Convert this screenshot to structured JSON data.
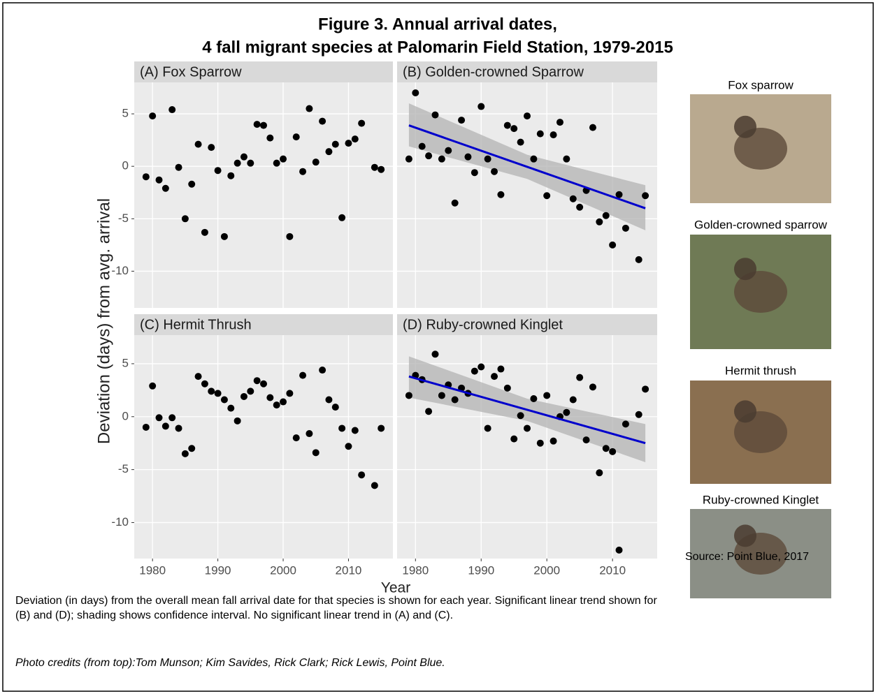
{
  "title": [
    "Figure 3. Annual arrival dates,",
    "4 fall migrant species at Palomarin Field Station, 1979-2015"
  ],
  "ylabel": "Deviation (days) from avg. arrival",
  "xlabel": "Year",
  "chart_data": [
    {
      "type": "scatter",
      "title": "(A) Fox Sparrow",
      "color": "#000000",
      "grid": true,
      "xlim": [
        1977.2,
        2016.8
      ],
      "ylim": [
        -13.5,
        8
      ],
      "xticks": [
        1980,
        1990,
        2000,
        2010
      ],
      "yticks": [
        -10,
        -5,
        0,
        5
      ],
      "x": [
        1979,
        1980,
        1981,
        1982,
        1983,
        1984,
        1985,
        1986,
        1987,
        1988,
        1989,
        1990,
        1991,
        1992,
        1993,
        1994,
        1995,
        1996,
        1997,
        1998,
        1999,
        2000,
        2001,
        2002,
        2003,
        2004,
        2005,
        2006,
        2007,
        2008,
        2009,
        2010,
        2011,
        2012,
        2014,
        2015
      ],
      "values": [
        -1.0,
        4.8,
        -1.3,
        -2.1,
        5.4,
        -0.1,
        -5.0,
        -1.7,
        2.1,
        -6.3,
        1.8,
        -0.4,
        -6.7,
        -0.9,
        0.3,
        0.9,
        0.3,
        4.0,
        3.9,
        2.7,
        0.3,
        0.7,
        -6.7,
        2.8,
        -0.5,
        5.5,
        0.4,
        4.3,
        1.4,
        2.1,
        -4.9,
        2.2,
        2.6,
        4.1,
        -0.1,
        -0.3
      ]
    },
    {
      "type": "scatter",
      "title": "(B) Golden-crowned Sparrow",
      "color": "#000000",
      "grid": true,
      "xlim": [
        1977.2,
        2016.8
      ],
      "ylim": [
        -13.5,
        8
      ],
      "xticks": [
        1980,
        1990,
        2000,
        2010
      ],
      "yticks": [
        -10,
        -5,
        0,
        5
      ],
      "x": [
        1979,
        1980,
        1981,
        1982,
        1983,
        1984,
        1985,
        1986,
        1987,
        1988,
        1989,
        1990,
        1991,
        1992,
        1993,
        1994,
        1995,
        1996,
        1997,
        1998,
        1999,
        2000,
        2001,
        2002,
        2003,
        2004,
        2005,
        2006,
        2007,
        2008,
        2009,
        2010,
        2011,
        2012,
        2014,
        2015
      ],
      "values": [
        0.7,
        7.0,
        1.9,
        1.0,
        4.9,
        0.7,
        1.5,
        -3.5,
        4.4,
        0.9,
        -0.6,
        5.7,
        0.7,
        -0.5,
        -2.7,
        3.9,
        3.6,
        2.3,
        4.8,
        0.7,
        3.1,
        -2.8,
        3.0,
        4.2,
        0.7,
        -3.1,
        -3.9,
        -2.3,
        3.7,
        -5.3,
        -4.7,
        -7.5,
        -2.7,
        -5.9,
        -8.9,
        -2.8
      ],
      "trend": {
        "color": "#0000cc",
        "band_color": "#b3b3b3",
        "x": [
          1979,
          1997,
          2015
        ],
        "values": [
          3.9,
          -0.05,
          -4.0
        ],
        "lower": [
          1.9,
          -1.2,
          -6.1
        ],
        "upper": [
          6.0,
          1.1,
          -1.8
        ]
      }
    },
    {
      "type": "scatter",
      "title": "(C) Hermit Thrush",
      "color": "#000000",
      "grid": true,
      "xlim": [
        1977.2,
        2016.8
      ],
      "ylim": [
        -13.4,
        7.7
      ],
      "xticks": [
        1980,
        1990,
        2000,
        2010
      ],
      "yticks": [
        -10,
        -5,
        0,
        5
      ],
      "x": [
        1979,
        1980,
        1981,
        1982,
        1983,
        1984,
        1985,
        1986,
        1987,
        1988,
        1989,
        1990,
        1991,
        1992,
        1993,
        1994,
        1995,
        1996,
        1997,
        1998,
        1999,
        2000,
        2001,
        2002,
        2003,
        2004,
        2005,
        2006,
        2007,
        2008,
        2009,
        2010,
        2011,
        2012,
        2014,
        2015
      ],
      "values": [
        -1.0,
        2.9,
        -0.1,
        -0.9,
        -0.1,
        -1.1,
        -3.5,
        -3.0,
        3.8,
        3.1,
        2.4,
        2.2,
        1.6,
        0.8,
        -0.4,
        1.9,
        2.4,
        3.4,
        3.1,
        1.8,
        1.1,
        1.4,
        2.2,
        -2.0,
        3.9,
        -1.6,
        -3.4,
        4.4,
        1.6,
        0.9,
        -1.1,
        -2.8,
        -1.3,
        -5.5,
        -6.5,
        -1.1
      ]
    },
    {
      "type": "scatter",
      "title": "(D) Ruby-crowned Kinglet",
      "color": "#000000",
      "grid": true,
      "xlim": [
        1977.2,
        2016.8
      ],
      "ylim": [
        -13.4,
        7.7
      ],
      "xticks": [
        1980,
        1990,
        2000,
        2010
      ],
      "yticks": [
        -10,
        -5,
        0,
        5
      ],
      "x": [
        1979,
        1980,
        1981,
        1982,
        1983,
        1984,
        1985,
        1986,
        1987,
        1988,
        1989,
        1990,
        1991,
        1992,
        1993,
        1994,
        1995,
        1996,
        1997,
        1998,
        1999,
        2000,
        2001,
        2002,
        2003,
        2004,
        2005,
        2006,
        2007,
        2008,
        2009,
        2010,
        2011,
        2012,
        2014,
        2015
      ],
      "values": [
        2.0,
        3.9,
        3.5,
        0.5,
        5.9,
        2.0,
        3.0,
        1.6,
        2.7,
        2.2,
        4.3,
        4.7,
        -1.1,
        3.8,
        4.5,
        2.7,
        -2.1,
        0.1,
        -1.1,
        1.7,
        -2.5,
        2.0,
        -2.3,
        0.0,
        0.4,
        1.6,
        3.7,
        -2.2,
        2.8,
        -5.3,
        -3.0,
        -3.3,
        -12.6,
        -0.7,
        0.2,
        2.6
      ],
      "trend": {
        "color": "#0000cc",
        "band_color": "#b3b3b3",
        "x": [
          1979,
          1997,
          2015
        ],
        "values": [
          3.8,
          0.65,
          -2.5
        ],
        "lower": [
          1.8,
          -0.4,
          -4.3
        ],
        "upper": [
          5.7,
          1.7,
          -0.7
        ]
      }
    }
  ],
  "photos": [
    "Fox sparrow",
    "Golden-crowned sparrow",
    "Hermit thrush",
    "Ruby-crowned Kinglet"
  ],
  "caption": "Deviation (in days) from the overall mean fall arrival date for that species is shown for each year. Significant linear trend shown for (B) and (D); shading shows confidence interval. No significant linear trend in (A) and (C).",
  "source": "Source: Point Blue, 2017",
  "credits": "Photo credits (from top):Tom Munson; Kim Savides, Rick Clark; Rick Lewis, Point Blue."
}
